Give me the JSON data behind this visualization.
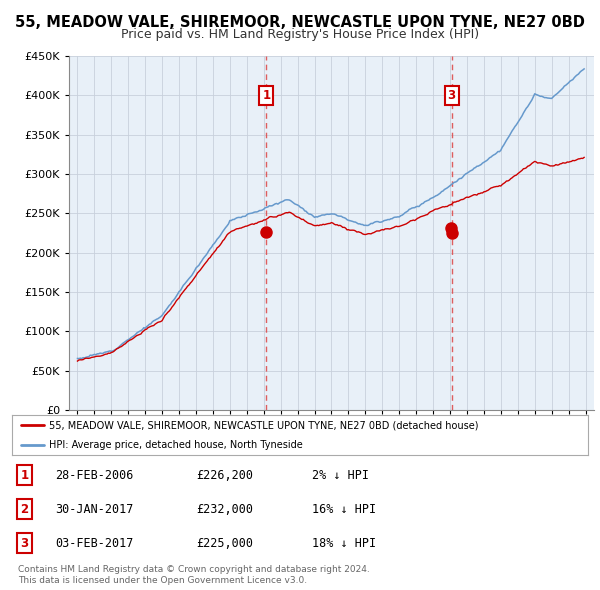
{
  "title": "55, MEADOW VALE, SHIREMOOR, NEWCASTLE UPON TYNE, NE27 0BD",
  "subtitle": "Price paid vs. HM Land Registry's House Price Index (HPI)",
  "legend_line1": "55, MEADOW VALE, SHIREMOOR, NEWCASTLE UPON TYNE, NE27 0BD (detached house)",
  "legend_line2": "HPI: Average price, detached house, North Tyneside",
  "footer1": "Contains HM Land Registry data © Crown copyright and database right 2024.",
  "footer2": "This data is licensed under the Open Government Licence v3.0.",
  "transactions": [
    {
      "num": 1,
      "date": "28-FEB-2006",
      "price": 226200,
      "pct": "2%",
      "direction": "↓",
      "year_x": 2006.16
    },
    {
      "num": 2,
      "date": "30-JAN-2017",
      "price": 232000,
      "pct": "16%",
      "direction": "↓",
      "year_x": 2017.08
    },
    {
      "num": 3,
      "date": "03-FEB-2017",
      "price": 225000,
      "pct": "18%",
      "direction": "↓",
      "year_x": 2017.09
    }
  ],
  "vline_years": [
    2006.16,
    2017.09
  ],
  "ylim": [
    0,
    450000
  ],
  "yticks": [
    0,
    50000,
    100000,
    150000,
    200000,
    250000,
    300000,
    350000,
    400000,
    450000
  ],
  "xlim_start": 1994.5,
  "xlim_end": 2025.5,
  "red_color": "#cc0000",
  "blue_color": "#6699cc",
  "vline_color": "#dd4444",
  "bg_color": "#ffffff",
  "plot_bg": "#e8f0f8",
  "grid_color": "#c8d0dc",
  "title_fontsize": 10.5,
  "subtitle_fontsize": 9.0
}
